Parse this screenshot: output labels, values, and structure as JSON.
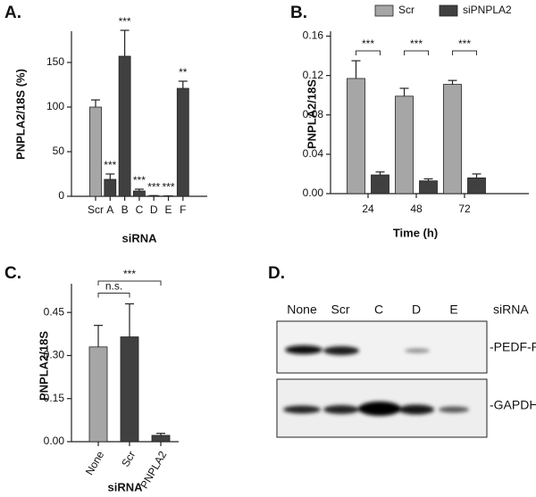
{
  "chart_data": [
    {
      "type": "bar",
      "panel_label": "A.",
      "categories": [
        "Scr",
        "A",
        "B",
        "C",
        "D",
        "E",
        "F"
      ],
      "values": [
        100,
        19,
        157,
        6,
        0.5,
        0.3,
        121
      ],
      "errors": [
        8,
        6,
        29,
        2,
        0.3,
        0.2,
        8
      ],
      "colors": [
        "#a6a6a6",
        "#404040",
        "#404040",
        "#404040",
        "#404040",
        "#404040",
        "#404040"
      ],
      "significance": [
        null,
        "***",
        "***",
        "***",
        "***",
        "***",
        "**"
      ],
      "ylim": [
        0,
        185
      ],
      "yticks": [
        0,
        50,
        100,
        150
      ],
      "ylabel": "PNPLA2/18S (%)",
      "xlabel": "siRNA"
    },
    {
      "type": "grouped_bar",
      "panel_label": "B.",
      "categories": [
        "24",
        "48",
        "72"
      ],
      "series": [
        {
          "name": "Scr",
          "color": "#a6a6a6",
          "values": [
            0.117,
            0.099,
            0.111
          ],
          "errors": [
            0.018,
            0.008,
            0.004
          ]
        },
        {
          "name": "siPNPLA2",
          "color": "#404040",
          "values": [
            0.019,
            0.013,
            0.016
          ],
          "errors": [
            0.003,
            0.002,
            0.004
          ]
        }
      ],
      "significance": [
        "***",
        "***",
        "***"
      ],
      "ylim": [
        0,
        0.165
      ],
      "yticks": [
        {
          "value": 0,
          "label": "0.00"
        },
        0.04,
        0.08,
        0.12,
        0.16
      ],
      "ylabel": "PNPLA2/18S",
      "xlabel": "Time (h)",
      "legend": "top"
    },
    {
      "type": "bar",
      "panel_label": "C.",
      "categories": [
        "None",
        "Scr",
        "PNPLA2"
      ],
      "values": [
        0.33,
        0.365,
        0.022
      ],
      "errors": [
        0.075,
        0.115,
        0.007
      ],
      "colors": [
        "#a6a6a6",
        "#404040",
        "#404040"
      ],
      "comparisons": [
        {
          "label": "n.s.",
          "between": [
            "None",
            "Scr"
          ]
        },
        {
          "label": "***",
          "between": [
            "None",
            "PNPLA2"
          ]
        }
      ],
      "ylim": [
        0,
        0.55
      ],
      "yticks": [
        {
          "value": 0,
          "label": "0.00"
        },
        0.15,
        {
          "value": 0.3,
          "label": "0.30"
        },
        0.45
      ],
      "ylabel": "PNPLA2/18S",
      "xlabel": "siRNA"
    }
  ],
  "blot": {
    "panel_label": "D.",
    "lanes": [
      "None",
      "Scr",
      "C",
      "D",
      "E"
    ],
    "lanes_title": "siRNA",
    "rows": [
      "-PEDF-R",
      "-GAPDH"
    ]
  }
}
